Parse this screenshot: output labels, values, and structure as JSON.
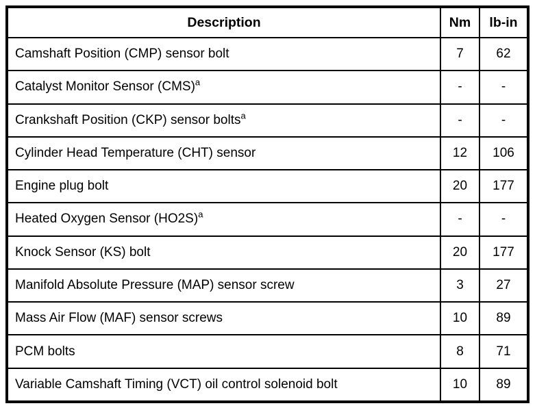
{
  "page": {
    "background_color": "#ffffff",
    "border_color": "#000000",
    "text_color": "#000000"
  },
  "table": {
    "headers": {
      "description": "Description",
      "nm": "Nm",
      "lbin": "lb-in"
    },
    "rows": [
      {
        "description": "Camshaft Position (CMP) sensor bolt",
        "note": "",
        "nm": "7",
        "lbin": "62"
      },
      {
        "description": "Catalyst Monitor Sensor (CMS)",
        "note": "a",
        "nm": "-",
        "lbin": "-"
      },
      {
        "description": "Crankshaft Position (CKP) sensor bolts",
        "note": "a",
        "nm": "-",
        "lbin": "-"
      },
      {
        "description": "Cylinder Head Temperature (CHT) sensor",
        "note": "",
        "nm": "12",
        "lbin": "106"
      },
      {
        "description": "Engine plug bolt",
        "note": "",
        "nm": "20",
        "lbin": "177"
      },
      {
        "description": "Heated Oxygen Sensor (HO2S)",
        "note": "a",
        "nm": "-",
        "lbin": "-"
      },
      {
        "description": "Knock Sensor (KS) bolt",
        "note": "",
        "nm": "20",
        "lbin": "177"
      },
      {
        "description": "Manifold Absolute Pressure (MAP) sensor screw",
        "note": "",
        "nm": "3",
        "lbin": "27"
      },
      {
        "description": "Mass Air Flow (MAF) sensor screws",
        "note": "",
        "nm": "10",
        "lbin": "89"
      },
      {
        "description": "PCM bolts",
        "note": "",
        "nm": "8",
        "lbin": "71"
      },
      {
        "description": "Variable Camshaft Timing (VCT) oil control solenoid bolt",
        "note": "",
        "nm": "10",
        "lbin": "89"
      }
    ]
  }
}
